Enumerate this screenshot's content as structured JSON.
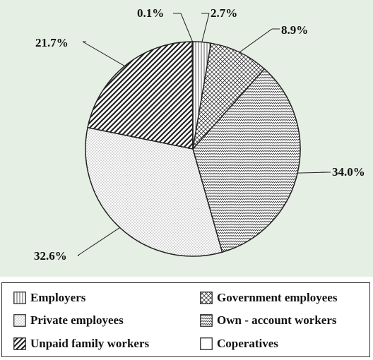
{
  "chart_data": {
    "type": "pie",
    "start_angle_deg": 0,
    "direction": "clockwise",
    "slices": [
      {
        "name": "Employers",
        "value": 2.7,
        "label": "2.7%",
        "pattern": "employers"
      },
      {
        "name": "Government employees",
        "value": 8.9,
        "label": "8.9%",
        "pattern": "government"
      },
      {
        "name": "Own - account workers",
        "value": 34.0,
        "label": "34.0%",
        "pattern": "ownaccount"
      },
      {
        "name": "Private employees",
        "value": 32.6,
        "label": "32.6%",
        "pattern": "private"
      },
      {
        "name": "Unpaid family workers",
        "value": 21.7,
        "label": "21.7%",
        "pattern": "unpaid"
      },
      {
        "name": "Coperatives",
        "value": 0.1,
        "label": "0.1%",
        "pattern": "coperatives"
      }
    ],
    "legend_placement": "bottom",
    "legend": [
      {
        "label": "Employers",
        "pattern": "employers"
      },
      {
        "label": "Government employees",
        "pattern": "government"
      },
      {
        "label": "Private employees",
        "pattern": "private"
      },
      {
        "label": "Own - account workers",
        "pattern": "ownaccount"
      },
      {
        "label": "Unpaid family workers",
        "pattern": "unpaid"
      },
      {
        "label": "Coperatives",
        "pattern": "coperatives"
      }
    ]
  },
  "colors": {
    "panel_background": "#e5efe3",
    "slice_stroke": "#222222",
    "pattern_ink": "#333333"
  }
}
